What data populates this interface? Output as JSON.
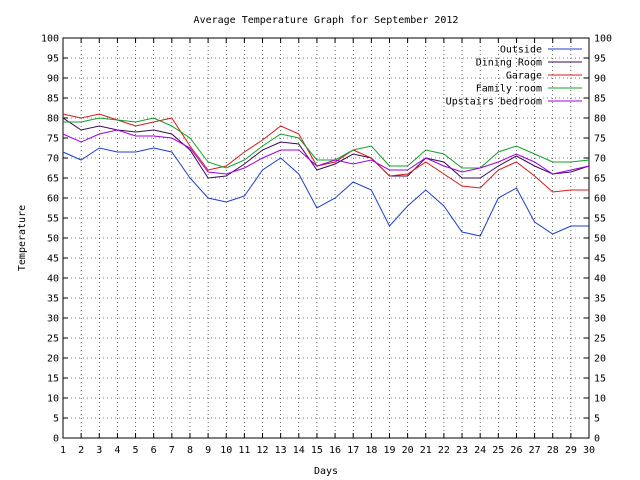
{
  "chart_data": {
    "type": "line",
    "title": "Average Temperature Graph for September 2012",
    "xlabel": "Days",
    "ylabel": "Temperature",
    "xlim": [
      1,
      30
    ],
    "ylim": [
      0,
      100
    ],
    "y2lim": [
      0,
      100
    ],
    "x_ticks": [
      "1",
      "2",
      "3",
      "4",
      "5",
      "6",
      "7",
      "8",
      "9",
      "10",
      "11",
      "12",
      "13",
      "14",
      "15",
      "16",
      "17",
      "18",
      "19",
      "20",
      "21",
      "22",
      "23",
      "24",
      "25",
      "26",
      "27",
      "28",
      "29",
      "30"
    ],
    "y_ticks": [
      "0",
      "5",
      "10",
      "15",
      "20",
      "25",
      "30",
      "35",
      "40",
      "45",
      "50",
      "55",
      "60",
      "65",
      "70",
      "75",
      "80",
      "85",
      "90",
      "95",
      "100"
    ],
    "grid": true,
    "legend_position": "top-right",
    "x": [
      1,
      2,
      3,
      4,
      5,
      6,
      7,
      8,
      9,
      10,
      11,
      12,
      13,
      14,
      15,
      16,
      17,
      18,
      19,
      20,
      21,
      22,
      23,
      24,
      25,
      26,
      27,
      28,
      29,
      30
    ],
    "series": [
      {
        "name": "Outside",
        "color": "#1a3fcf",
        "values": [
          71.5,
          69.5,
          72.5,
          71.5,
          71.5,
          72.5,
          71.5,
          65,
          60,
          59,
          60.5,
          67,
          70,
          66,
          57.5,
          60,
          64,
          62,
          53,
          58,
          62,
          58,
          51.5,
          50.5,
          60,
          62.5,
          54,
          51,
          53,
          53
        ]
      },
      {
        "name": "Dining Room",
        "color": "#3a0a55",
        "values": [
          80,
          77,
          78,
          77,
          76.5,
          77,
          76,
          72,
          65,
          65.5,
          68.5,
          72,
          74,
          73.5,
          67,
          68.5,
          71,
          70,
          65.5,
          65.5,
          70,
          69,
          65,
          65,
          68,
          70.5,
          68,
          66,
          66.5,
          68
        ]
      },
      {
        "name": "Garage",
        "color": "#d81a1a",
        "values": [
          81,
          80,
          81,
          79.5,
          78,
          79,
          80,
          73,
          67,
          68,
          71.5,
          74.5,
          78,
          76,
          68,
          69,
          72,
          70,
          65.5,
          66,
          69,
          66,
          63,
          62.5,
          67,
          69,
          65.5,
          61.5,
          62,
          62
        ]
      },
      {
        "name": "Family room",
        "color": "#11a02a",
        "values": [
          79,
          79,
          80,
          79.5,
          79,
          80,
          78,
          75,
          69,
          67.5,
          69.5,
          73,
          76,
          75,
          69.5,
          69.5,
          72,
          73,
          68,
          68,
          72,
          71,
          67.5,
          67.5,
          71.5,
          73,
          71,
          69,
          69,
          69.5
        ]
      },
      {
        "name": "Upstairs bedroom",
        "color": "#a000e0",
        "values": [
          76,
          74,
          76,
          77,
          75.5,
          75.5,
          75,
          72.5,
          66.5,
          66,
          67.5,
          70,
          72,
          72,
          68,
          69.5,
          68.5,
          69.5,
          67,
          67,
          70,
          68,
          66.5,
          67.5,
          69,
          71,
          69,
          66,
          67,
          68
        ]
      }
    ]
  }
}
